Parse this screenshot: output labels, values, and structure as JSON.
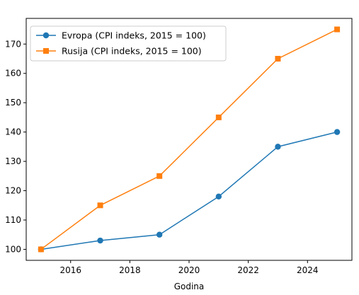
{
  "chart_data": {
    "type": "line",
    "title": "",
    "xlabel": "Godina",
    "ylabel": "",
    "xlim": [
      2014.5,
      2025.5
    ],
    "ylim": [
      96.25,
      178.75
    ],
    "xticks": [
      2016,
      2018,
      2020,
      2022,
      2024
    ],
    "yticks": [
      100,
      110,
      120,
      130,
      140,
      150,
      160,
      170
    ],
    "grid": false,
    "legend": "top-left",
    "series": [
      {
        "name": "Evropa (CPI indeks, 2015 = 100)",
        "color": "#1f77b4",
        "marker": "circle",
        "x": [
          2015,
          2017,
          2019,
          2021,
          2023,
          2025
        ],
        "y": [
          100,
          103,
          105,
          118,
          135,
          140
        ]
      },
      {
        "name": "Rusija (CPI indeks, 2015 = 100)",
        "color": "#ff7f0e",
        "marker": "square",
        "x": [
          2015,
          2017,
          2019,
          2021,
          2023,
          2025
        ],
        "y": [
          100,
          115,
          125,
          145,
          165,
          175
        ]
      }
    ]
  }
}
